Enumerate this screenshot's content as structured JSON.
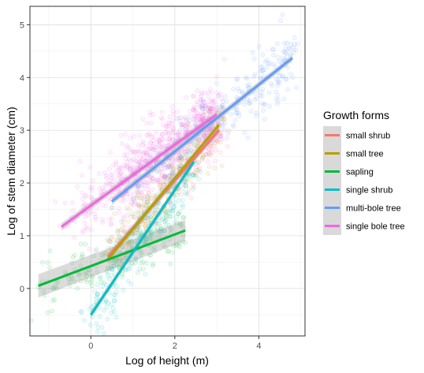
{
  "chart_data": {
    "type": "scatter",
    "xlabel": "Log of height (m)",
    "ylabel": "Log of stem diameter (cm)",
    "xlim": [
      -1.45,
      5.1
    ],
    "ylim": [
      -0.9,
      5.35
    ],
    "x_ticks": [
      0,
      2,
      4
    ],
    "y_ticks": [
      0,
      1,
      2,
      3,
      4,
      5
    ],
    "grid": true,
    "legend_title": "Growth forms",
    "legend_position": "right",
    "series": [
      {
        "name": "small shrub",
        "color": "#F8766D",
        "fit": {
          "x": [
            0.4,
            3.05
          ],
          "y": [
            0.6,
            3.0
          ]
        }
      },
      {
        "name": "small tree",
        "color": "#B79F00",
        "fit": {
          "x": [
            0.4,
            3.05
          ],
          "y": [
            0.55,
            3.1
          ]
        }
      },
      {
        "name": "sapling",
        "color": "#00BA38",
        "fit": {
          "x": [
            -1.25,
            2.25
          ],
          "y": [
            0.05,
            1.1
          ]
        }
      },
      {
        "name": "single shrub",
        "color": "#00BFC4",
        "fit": {
          "x": [
            0.0,
            2.45
          ],
          "y": [
            -0.5,
            2.4
          ]
        }
      },
      {
        "name": "multi-bole tree",
        "color": "#619CFF",
        "fit": {
          "x": [
            0.5,
            4.8
          ],
          "y": [
            1.65,
            4.37
          ]
        }
      },
      {
        "name": "single bole tree",
        "color": "#F564E3",
        "fit": {
          "x": [
            -0.7,
            3.0
          ],
          "y": [
            1.17,
            3.3
          ]
        }
      }
    ]
  }
}
